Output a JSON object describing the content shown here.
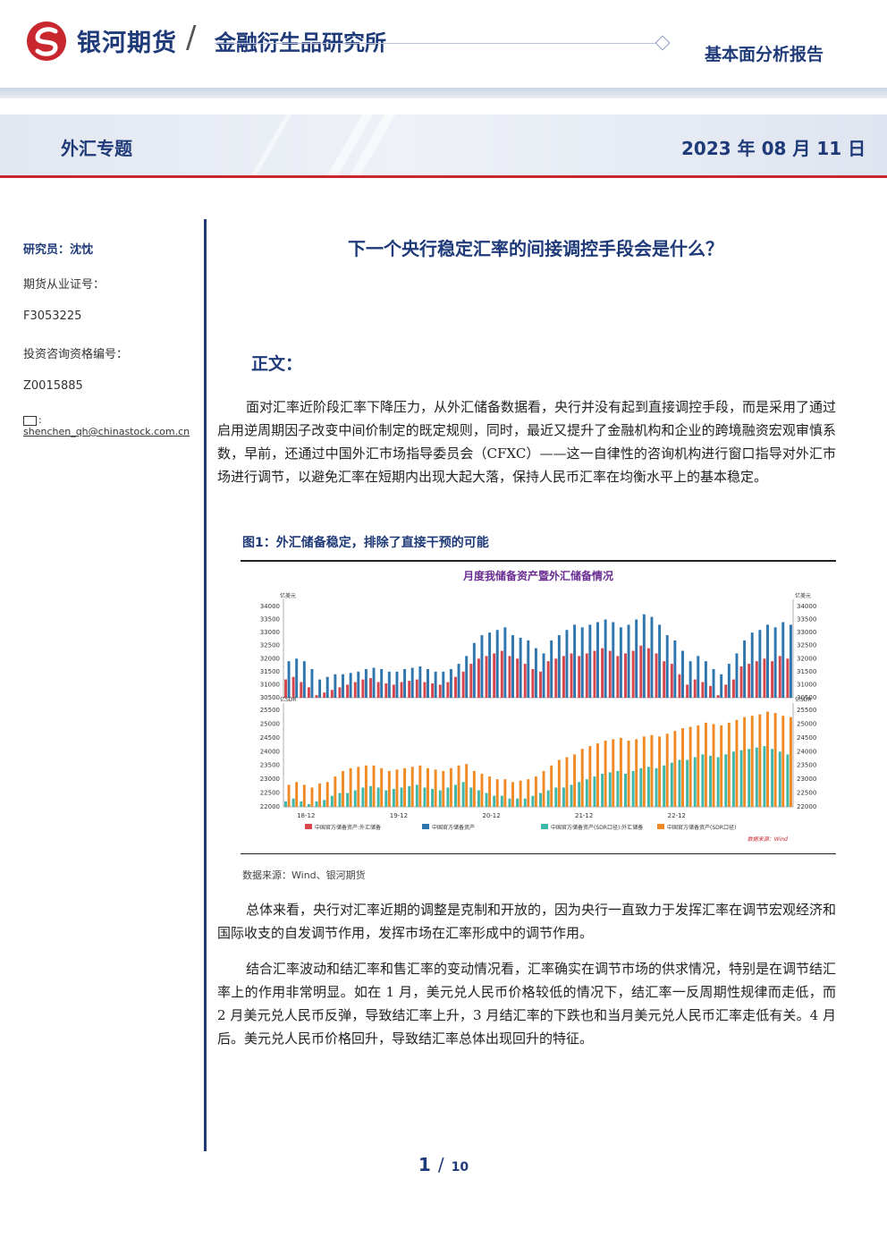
{
  "header": {
    "company": "银河期货",
    "institute": "金融衍生品研究所",
    "report_type": "基本面分析报告"
  },
  "band": {
    "topic": "外汇专题",
    "date": "2023 年 08 月 11 日"
  },
  "sidebar": {
    "researcher": "研究员：沈忱",
    "license_label": "期货从业证号：",
    "license_no": "F3053225",
    "consult_label": "投资咨询资格编号：",
    "consult_no": "Z0015885",
    "email": "shenchen_qh@chinastock.com.cn"
  },
  "article": {
    "title": "下一个央行稳定汇率的间接调控手段会是什么？",
    "section": "正文：",
    "p1": "面对汇率近阶段汇率下降压力，从外汇储备数据看，央行并没有起到直接调控手段，而是采用了通过启用逆周期因子改变中间价制定的既定规则，同时，最近又提升了金融机构和企业的跨境融资宏观审慎系数，早前，还通过中国外汇市场指导委员会（CFXC）——这一自律性的咨询机构进行窗口指导对外汇市场进行调节，以避免汇率在短期内出现大起大落，保持人民币汇率在均衡水平上的基本稳定。",
    "p2": "总体来看，央行对汇率近期的调整是克制和开放的，因为央行一直致力于发挥汇率在调节宏观经济和国际收支的自发调节作用，发挥市场在汇率形成中的调节作用。",
    "p3": "结合汇率波动和结汇率和售汇率的变动情况看，汇率确实在调节市场的供求情况，特别是在调节结汇率上的作用非常明显。如在 1 月，美元兑人民币价格较低的情况下，结汇率一反周期性规律而走低，而 2 月美元兑人民币反弹，导致结汇率上升，3 月结汇率的下跌也和当月美元兑人民币汇率走低有关。4 月后。美元兑人民币价格回升，导致结汇率总体出现回升的特征。"
  },
  "figure": {
    "caption": "图1：外汇储备稳定，排除了直接干预的可能",
    "source": "数据来源：Wind、银河期货"
  },
  "chart_data": {
    "type": "bar",
    "title": "月度我储备资产暨外汇储备情况",
    "footer_note": "数据来源：Wind",
    "x_ticks": [
      "18-12",
      "19-12",
      "20-12",
      "21-12",
      "22-12"
    ],
    "panels": [
      {
        "left_unit": "亿美元",
        "right_unit": "亿美元",
        "ylim": [
          30500,
          34000
        ],
        "yticks": [
          30500,
          31000,
          31500,
          32000,
          32500,
          33000,
          33500,
          34000
        ],
        "series": [
          {
            "name": "中国官方储备资产:外汇储备",
            "color": "#d6474d",
            "values": [
              31200,
              31300,
              31100,
              30900,
              30600,
              30700,
              30800,
              30900,
              31000,
              31100,
              31200,
              31250,
              31100,
              31050,
              31000,
              31100,
              31150,
              31200,
              31100,
              31050,
              31000,
              31100,
              31300,
              31500,
              31800,
              32000,
              32100,
              32200,
              32300,
              32100,
              32000,
              31800,
              31600,
              31500,
              31900,
              32000,
              32100,
              32200,
              32100,
              32200,
              32300,
              32400,
              32300,
              32100,
              32200,
              32300,
              32500,
              32400,
              32200,
              31900,
              31800,
              31400,
              31000,
              31200,
              31100,
              30950,
              30600,
              31000,
              31200,
              31700,
              31800,
              31900,
              32000,
              31900,
              32100,
              32000
            ]
          },
          {
            "name": "中国官方储备资产",
            "color": "#2f75ae",
            "values": [
              31900,
              32000,
              31900,
              31600,
              31200,
              31300,
              31400,
              31400,
              31450,
              31500,
              31600,
              31650,
              31600,
              31500,
              31500,
              31600,
              31650,
              31700,
              31600,
              31500,
              31500,
              31600,
              31800,
              32100,
              32600,
              32900,
              33000,
              33100,
              33200,
              32900,
              32800,
              32700,
              32400,
              32200,
              32700,
              32900,
              33100,
              33300,
              33200,
              33300,
              33400,
              33500,
              33400,
              33200,
              33300,
              33500,
              33700,
              33600,
              33300,
              32900,
              32700,
              32300,
              31900,
              32100,
              31900,
              31600,
              31400,
              31800,
              32200,
              32700,
              33000,
              33100,
              33300,
              33200,
              33400,
              33300
            ]
          }
        ]
      },
      {
        "left_unit": "亿SDR",
        "right_unit": "亿SDR",
        "ylim": [
          22000,
          25500
        ],
        "yticks": [
          22000,
          22500,
          23000,
          23500,
          24000,
          24500,
          25000,
          25500
        ],
        "series": [
          {
            "name": "中国官方储备资产(SDR口径):外汇储备",
            "color": "#3fb8aa",
            "values": [
              22200,
              22300,
              22200,
              22100,
              22200,
              22250,
              22400,
              22500,
              22500,
              22600,
              22700,
              22750,
              22700,
              22600,
              22650,
              22700,
              22750,
              22800,
              22700,
              22650,
              22600,
              22700,
              22800,
              22900,
              22700,
              22600,
              22500,
              22400,
              22400,
              22300,
              22300,
              22300,
              22400,
              22500,
              22600,
              22700,
              22700,
              22800,
              22900,
              23000,
              23100,
              23200,
              23250,
              23300,
              23200,
              23300,
              23400,
              23450,
              23400,
              23500,
              23600,
              23700,
              23700,
              23800,
              23900,
              23850,
              23800,
              23900,
              24000,
              24050,
              24100,
              24150,
              24200,
              24100,
              24000,
              23900
            ]
          },
          {
            "name": "中国官方储备资产(SDR口径)",
            "color": "#f08a24",
            "values": [
              22800,
              22900,
              22800,
              22700,
              22850,
              22900,
              23100,
              23300,
              23400,
              23450,
              23500,
              23500,
              23400,
              23300,
              23350,
              23400,
              23450,
              23500,
              23400,
              23350,
              23300,
              23400,
              23500,
              23550,
              23300,
              23200,
              23100,
              23000,
              23000,
              22900,
              22950,
              23000,
              23100,
              23300,
              23500,
              23700,
              23800,
              23900,
              24100,
              24200,
              24300,
              24400,
              24450,
              24500,
              24400,
              24450,
              24550,
              24600,
              24550,
              24650,
              24750,
              24850,
              24900,
              24950,
              25050,
              25000,
              24950,
              25050,
              25150,
              25250,
              25300,
              25350,
              25450,
              25400,
              25300,
              25250
            ]
          }
        ]
      }
    ],
    "legend": [
      "中国官方储备资产:外汇储备",
      "中国官方储备资产",
      "中国官方储备资产(SDR口径):外汇储备",
      "中国官方储备资产(SDR口径)"
    ]
  },
  "footer": {
    "page": "1",
    "separator": "/",
    "total": "10"
  },
  "colors": {
    "brand_navy": "#1f3a78",
    "accent_red": "#c8272d",
    "bar_red": "#d6474d",
    "bar_blue": "#2f75ae",
    "bar_teal": "#3fb8aa",
    "bar_orange": "#f08a24"
  }
}
